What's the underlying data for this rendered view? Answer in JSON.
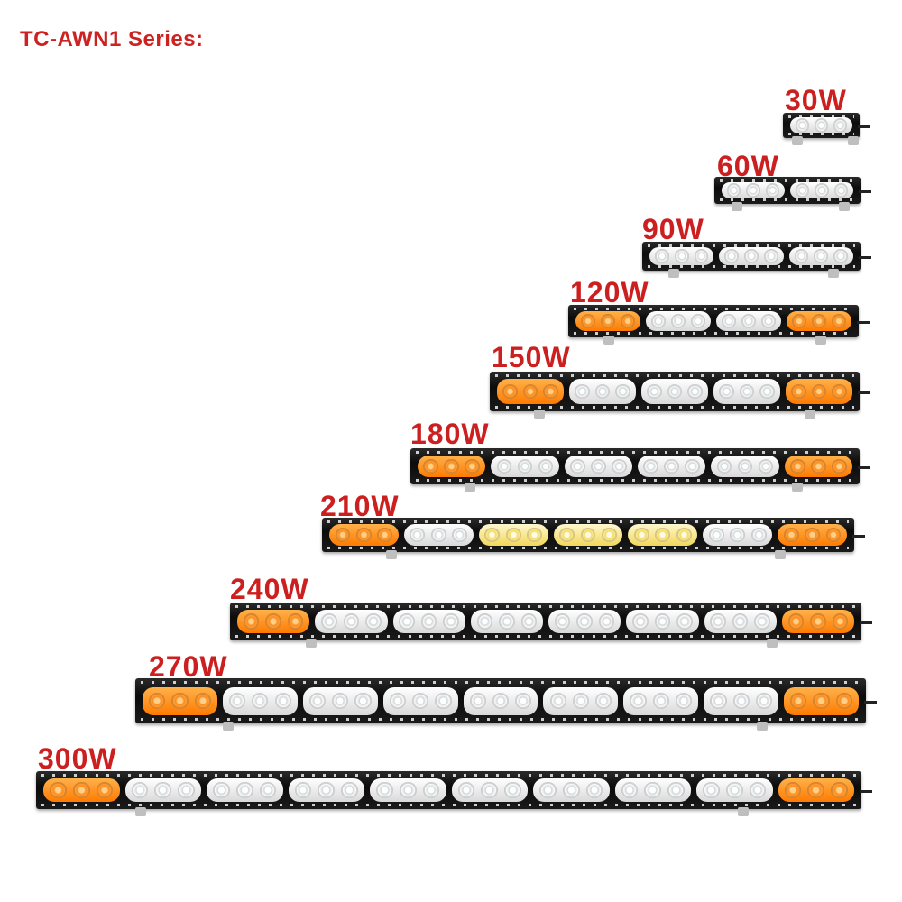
{
  "title": "TC-AWN1 Series:",
  "products": [
    {
      "label": "30W",
      "clusters": [
        "white"
      ]
    },
    {
      "label": "60W",
      "clusters": [
        "white",
        "white"
      ]
    },
    {
      "label": "90W",
      "clusters": [
        "white",
        "white",
        "white"
      ]
    },
    {
      "label": "120W",
      "clusters": [
        "amber",
        "white",
        "white",
        "amber"
      ]
    },
    {
      "label": "150W",
      "clusters": [
        "amber",
        "white",
        "white",
        "white",
        "amber"
      ]
    },
    {
      "label": "180W",
      "clusters": [
        "amber",
        "white",
        "white",
        "white",
        "white",
        "amber"
      ]
    },
    {
      "label": "210W",
      "clusters": [
        "amber",
        "white",
        "yellow",
        "yellow",
        "yellow",
        "white",
        "amber"
      ]
    },
    {
      "label": "240W",
      "clusters": [
        "amber",
        "white",
        "white",
        "white",
        "white",
        "white",
        "white",
        "amber"
      ]
    },
    {
      "label": "270W",
      "clusters": [
        "amber",
        "white",
        "white",
        "white",
        "white",
        "white",
        "white",
        "white",
        "amber"
      ]
    },
    {
      "label": "300W",
      "clusters": [
        "amber",
        "white",
        "white",
        "white",
        "white",
        "white",
        "white",
        "white",
        "white",
        "amber"
      ]
    }
  ],
  "colors": {
    "label": "#cc1f1f",
    "title": "#cc2222",
    "amber": "#ff8400",
    "white": "#ffffff",
    "yellow": "#f4da63"
  }
}
